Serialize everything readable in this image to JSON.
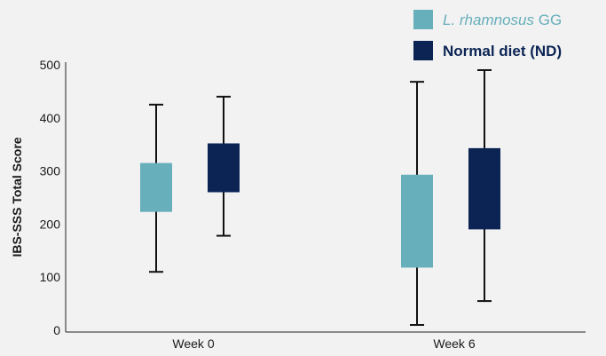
{
  "chart_data": {
    "type": "boxplot",
    "ylabel": "IBS-SSS Total Score",
    "xlabel": "",
    "ylim": [
      0,
      500
    ],
    "yticks": [
      0,
      100,
      200,
      300,
      400,
      500
    ],
    "grid": false,
    "legend_position": "top-right",
    "categories": [
      "Week 0",
      "Week 6"
    ],
    "series": [
      {
        "name_italic": "L. rhamnosus",
        "name_suffix": " GG",
        "color": "#66afbb",
        "boxes": [
          {
            "min": 110,
            "q1": 223,
            "q3": 315,
            "max": 425
          },
          {
            "min": 10,
            "q1": 118,
            "q3": 293,
            "max": 468
          }
        ]
      },
      {
        "name": "Normal diet (ND)",
        "color": "#0b2454",
        "boxes": [
          {
            "min": 178,
            "q1": 260,
            "q3": 352,
            "max": 440
          },
          {
            "min": 55,
            "q1": 190,
            "q3": 343,
            "max": 490
          }
        ]
      }
    ]
  }
}
